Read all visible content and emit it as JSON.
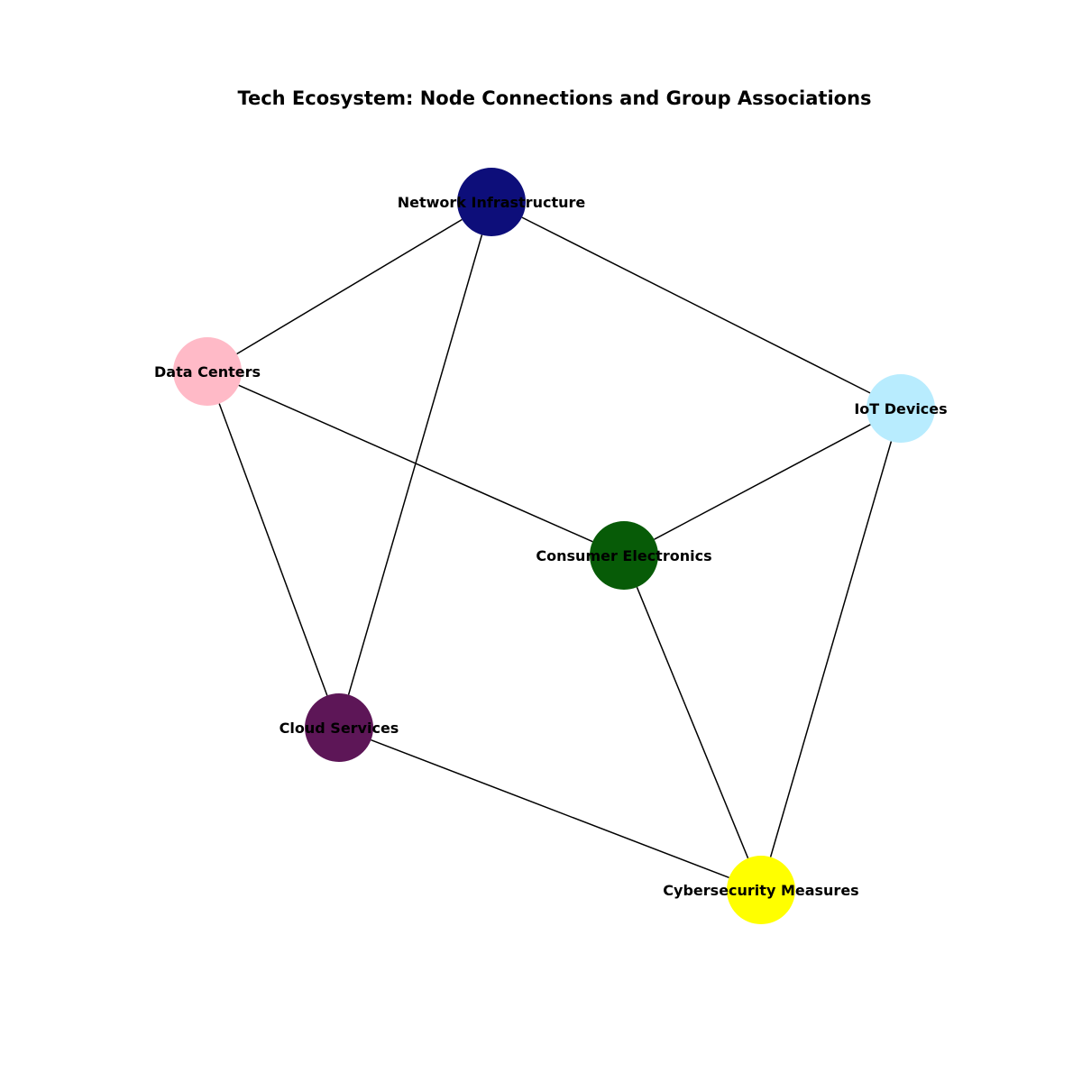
{
  "title": "Tech Ecosystem: Node Connections and Group Associations",
  "nodes": [
    {
      "id": "network-infrastructure",
      "label": "Network Infrastructure",
      "color": "#0d0e7a"
    },
    {
      "id": "data-centers",
      "label": "Data Centers",
      "color": "#ffbac7"
    },
    {
      "id": "iot-devices",
      "label": "IoT Devices",
      "color": "#b8ecfe"
    },
    {
      "id": "consumer-electronics",
      "label": "Consumer Electronics",
      "color": "#075b07"
    },
    {
      "id": "cloud-services",
      "label": "Cloud Services",
      "color": "#5d1657"
    },
    {
      "id": "cybersecurity-measures",
      "label": "Cybersecurity Measures",
      "color": "#ffff00"
    }
  ],
  "edges": [
    {
      "source": "network-infrastructure",
      "target": "data-centers"
    },
    {
      "source": "network-infrastructure",
      "target": "cloud-services"
    },
    {
      "source": "network-infrastructure",
      "target": "iot-devices"
    },
    {
      "source": "data-centers",
      "target": "consumer-electronics"
    },
    {
      "source": "data-centers",
      "target": "cloud-services"
    },
    {
      "source": "iot-devices",
      "target": "consumer-electronics"
    },
    {
      "source": "iot-devices",
      "target": "cybersecurity-measures"
    },
    {
      "source": "consumer-electronics",
      "target": "cybersecurity-measures"
    },
    {
      "source": "cloud-services",
      "target": "cybersecurity-measures"
    }
  ]
}
